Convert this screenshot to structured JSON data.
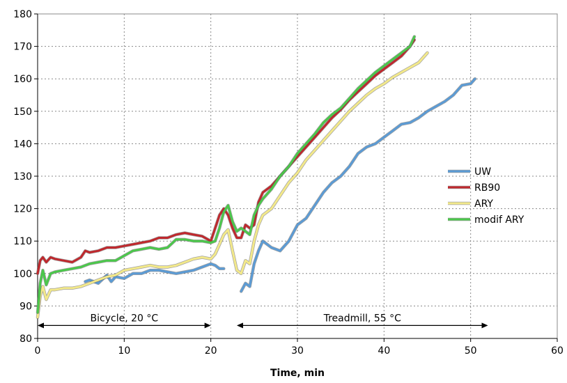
{
  "chart_data": {
    "type": "line",
    "title": "",
    "xlabel": "Time, min",
    "ylabel": "",
    "xlim": [
      0,
      60
    ],
    "ylim": [
      80,
      180
    ],
    "xticks": [
      0,
      10,
      20,
      30,
      40,
      50,
      60
    ],
    "yticks": [
      80,
      90,
      100,
      110,
      120,
      130,
      140,
      150,
      160,
      170,
      180
    ],
    "grid": true,
    "legend_position": "right",
    "series": [
      {
        "name": "UW",
        "color": "#5B9BD5",
        "points": [
          [
            5.5,
            97.5
          ],
          [
            6,
            98
          ],
          [
            7,
            97
          ],
          [
            8,
            99.5
          ],
          [
            8.5,
            97.5
          ],
          [
            9,
            99
          ],
          [
            10,
            98.5
          ],
          [
            11,
            100
          ],
          [
            12,
            100
          ],
          [
            13,
            101
          ],
          [
            14,
            101
          ],
          [
            15,
            100.5
          ],
          [
            16,
            100
          ],
          [
            17,
            100.5
          ],
          [
            18,
            101
          ],
          [
            19,
            102
          ],
          [
            20,
            103
          ],
          [
            20.5,
            102.5
          ],
          [
            21,
            101.5
          ],
          [
            21.5,
            101.5
          ],
          [
            23.5,
            94.5
          ],
          [
            24,
            97
          ],
          [
            24.5,
            96
          ],
          [
            25,
            103
          ],
          [
            25.5,
            107
          ],
          [
            26,
            110
          ],
          [
            27,
            108
          ],
          [
            28,
            107
          ],
          [
            29,
            110
          ],
          [
            30,
            115
          ],
          [
            31,
            117
          ],
          [
            32,
            121
          ],
          [
            33,
            125
          ],
          [
            34,
            128
          ],
          [
            35,
            130
          ],
          [
            36,
            133
          ],
          [
            37,
            137
          ],
          [
            38,
            139
          ],
          [
            39,
            140
          ],
          [
            40,
            142
          ],
          [
            41,
            144
          ],
          [
            42,
            146
          ],
          [
            43,
            146.5
          ],
          [
            44,
            148
          ],
          [
            45,
            150
          ],
          [
            46,
            151.5
          ],
          [
            47,
            153
          ],
          [
            48,
            155
          ],
          [
            49,
            158
          ],
          [
            50,
            158.5
          ],
          [
            50.5,
            160
          ]
        ]
      },
      {
        "name": "RB90",
        "color": "#C0282D",
        "points": [
          [
            0,
            100
          ],
          [
            0.3,
            104
          ],
          [
            0.6,
            105
          ],
          [
            1,
            103.5
          ],
          [
            1.5,
            105
          ],
          [
            2,
            104.5
          ],
          [
            3,
            104
          ],
          [
            4,
            103.5
          ],
          [
            5,
            105
          ],
          [
            5.5,
            107
          ],
          [
            6,
            106.5
          ],
          [
            7,
            107
          ],
          [
            8,
            108
          ],
          [
            9,
            108
          ],
          [
            10,
            108.5
          ],
          [
            11,
            109
          ],
          [
            12,
            109.5
          ],
          [
            13,
            110
          ],
          [
            14,
            111
          ],
          [
            15,
            111
          ],
          [
            16,
            112
          ],
          [
            17,
            112.5
          ],
          [
            18,
            112
          ],
          [
            19,
            111.5
          ],
          [
            20,
            110
          ],
          [
            20.5,
            114
          ],
          [
            21,
            118
          ],
          [
            21.5,
            120
          ],
          [
            22,
            118
          ],
          [
            22.5,
            114
          ],
          [
            23,
            111
          ],
          [
            23.5,
            111
          ],
          [
            24,
            115
          ],
          [
            24.5,
            114
          ],
          [
            25,
            115
          ],
          [
            25.5,
            122
          ],
          [
            26,
            125
          ],
          [
            27,
            127
          ],
          [
            28,
            130
          ],
          [
            29,
            133
          ],
          [
            30,
            136
          ],
          [
            31,
            139
          ],
          [
            32,
            142
          ],
          [
            33,
            145
          ],
          [
            34,
            148
          ],
          [
            35,
            150.5
          ],
          [
            36,
            153.5
          ],
          [
            37,
            156
          ],
          [
            38,
            158.5
          ],
          [
            39,
            161
          ],
          [
            40,
            163
          ],
          [
            41,
            165
          ],
          [
            42,
            167
          ],
          [
            43,
            170
          ],
          [
            43.5,
            172
          ]
        ]
      },
      {
        "name": "ARY",
        "color": "#F3E98A",
        "points": [
          [
            0,
            86.5
          ],
          [
            0.3,
            93
          ],
          [
            0.6,
            96
          ],
          [
            1,
            92
          ],
          [
            1.5,
            95
          ],
          [
            2,
            95
          ],
          [
            3,
            95.5
          ],
          [
            4,
            95.5
          ],
          [
            5,
            96
          ],
          [
            6,
            97
          ],
          [
            7,
            98
          ],
          [
            8,
            99
          ],
          [
            9,
            99.5
          ],
          [
            10,
            101
          ],
          [
            11,
            101.5
          ],
          [
            12,
            102
          ],
          [
            13,
            102.5
          ],
          [
            14,
            102
          ],
          [
            15,
            102
          ],
          [
            16,
            102.5
          ],
          [
            17,
            103.5
          ],
          [
            18,
            104.5
          ],
          [
            19,
            105
          ],
          [
            20,
            104.5
          ],
          [
            20.5,
            106
          ],
          [
            21,
            109
          ],
          [
            21.5,
            112
          ],
          [
            22,
            113.5
          ],
          [
            22.5,
            107
          ],
          [
            23,
            101
          ],
          [
            23.5,
            100
          ],
          [
            24,
            104
          ],
          [
            24.5,
            103
          ],
          [
            25,
            110
          ],
          [
            25.5,
            115
          ],
          [
            26,
            118
          ],
          [
            27,
            120
          ],
          [
            28,
            124
          ],
          [
            29,
            128
          ],
          [
            30,
            131
          ],
          [
            31,
            135
          ],
          [
            32,
            138
          ],
          [
            33,
            141
          ],
          [
            34,
            144
          ],
          [
            35,
            147
          ],
          [
            36,
            150
          ],
          [
            37,
            152.5
          ],
          [
            38,
            155
          ],
          [
            39,
            157
          ],
          [
            40,
            158.5
          ],
          [
            41,
            160.5
          ],
          [
            42,
            162
          ],
          [
            43,
            163.5
          ],
          [
            44,
            165
          ],
          [
            45,
            168
          ]
        ]
      },
      {
        "name": "modif ARY",
        "color": "#4BC84B",
        "points": [
          [
            0,
            88
          ],
          [
            0.3,
            97
          ],
          [
            0.6,
            101
          ],
          [
            1,
            96.5
          ],
          [
            1.5,
            100
          ],
          [
            2,
            100.5
          ],
          [
            3,
            101
          ],
          [
            4,
            101.5
          ],
          [
            5,
            102
          ],
          [
            6,
            103
          ],
          [
            7,
            103.5
          ],
          [
            8,
            104
          ],
          [
            9,
            104
          ],
          [
            10,
            105.5
          ],
          [
            11,
            107
          ],
          [
            12,
            107.5
          ],
          [
            13,
            108
          ],
          [
            14,
            107.5
          ],
          [
            15,
            108
          ],
          [
            16,
            110.5
          ],
          [
            17,
            110.5
          ],
          [
            18,
            110
          ],
          [
            19,
            110
          ],
          [
            20,
            109.5
          ],
          [
            20.5,
            110
          ],
          [
            21,
            114
          ],
          [
            21.5,
            119
          ],
          [
            22,
            121
          ],
          [
            22.5,
            116
          ],
          [
            23,
            113
          ],
          [
            23.5,
            114
          ],
          [
            24,
            113
          ],
          [
            24.5,
            112
          ],
          [
            25,
            118
          ],
          [
            25.5,
            121
          ],
          [
            26,
            123
          ],
          [
            27,
            126
          ],
          [
            28,
            130
          ],
          [
            29,
            133
          ],
          [
            30,
            137
          ],
          [
            31,
            140
          ],
          [
            32,
            143
          ],
          [
            33,
            146.5
          ],
          [
            34,
            149
          ],
          [
            35,
            151
          ],
          [
            36,
            154
          ],
          [
            37,
            157
          ],
          [
            38,
            159.5
          ],
          [
            39,
            162
          ],
          [
            40,
            164
          ],
          [
            41,
            166
          ],
          [
            42,
            168
          ],
          [
            43,
            170
          ],
          [
            43.5,
            173
          ]
        ]
      }
    ],
    "annotations": [
      {
        "text": "Bicycle, 20 °C",
        "from": 0,
        "to": 20,
        "y": 84
      },
      {
        "text": "Treadmill, 55 °C",
        "from": 23,
        "to": 52,
        "y": 84
      }
    ]
  }
}
